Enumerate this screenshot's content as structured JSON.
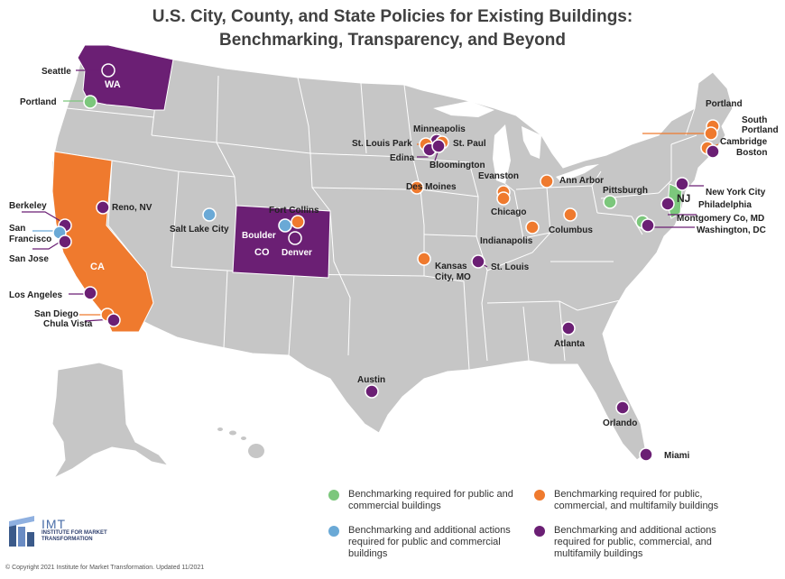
{
  "title": {
    "line1": "U.S. City, County, and State Policies for Existing Buildings:",
    "line2": "Benchmarking, Transparency, and Beyond"
  },
  "colors": {
    "land": "#c6c6c6",
    "border": "#ffffff",
    "green": "#7cc77c",
    "blue": "#6aa9d6",
    "orange": "#ef7a2e",
    "purple": "#6b1f74",
    "state_purple": "#6b1f74",
    "state_orange": "#ef7a2e"
  },
  "states": [
    {
      "abbr": "WA",
      "category": "purple"
    },
    {
      "abbr": "CA",
      "category": "orange"
    },
    {
      "abbr": "CO",
      "category": "purple"
    },
    {
      "abbr": "NJ",
      "category": "green"
    }
  ],
  "cities": [
    {
      "name": "Seattle",
      "category": "purple"
    },
    {
      "name": "Portland",
      "category": "green"
    },
    {
      "name": "Berkeley",
      "category": "purple"
    },
    {
      "name": "San Francisco",
      "category": "blue"
    },
    {
      "name": "San Jose",
      "category": "purple"
    },
    {
      "name": "Reno, NV",
      "category": "purple"
    },
    {
      "name": "Los Angeles",
      "category": "purple"
    },
    {
      "name": "San Diego",
      "category": "orange"
    },
    {
      "name": "Chula Vista",
      "category": "purple"
    },
    {
      "name": "Salt Lake City",
      "category": "blue"
    },
    {
      "name": "Fort Collins",
      "category": "orange"
    },
    {
      "name": "Boulder",
      "category": "blue"
    },
    {
      "name": "Denver",
      "category": "purple"
    },
    {
      "name": "Austin",
      "category": "purple"
    },
    {
      "name": "Minneapolis",
      "category": "purple"
    },
    {
      "name": "St. Louis Park",
      "category": "orange"
    },
    {
      "name": "St. Paul",
      "category": "orange"
    },
    {
      "name": "Edina",
      "category": "purple"
    },
    {
      "name": "Bloomington",
      "category": "purple"
    },
    {
      "name": "Des Moines",
      "category": "orange"
    },
    {
      "name": "Kansas City, MO",
      "category": "orange"
    },
    {
      "name": "St. Louis",
      "category": "purple"
    },
    {
      "name": "Evanston",
      "category": "orange"
    },
    {
      "name": "Chicago",
      "category": "orange"
    },
    {
      "name": "Indianapolis",
      "category": "orange"
    },
    {
      "name": "Ann Arbor",
      "category": "orange"
    },
    {
      "name": "Columbus",
      "category": "orange"
    },
    {
      "name": "Pittsburgh",
      "category": "green"
    },
    {
      "name": "Atlanta",
      "category": "purple"
    },
    {
      "name": "Orlando",
      "category": "purple"
    },
    {
      "name": "Miami",
      "category": "purple"
    },
    {
      "name": "Portland",
      "category": "orange"
    },
    {
      "name": "South Portland",
      "category": "orange"
    },
    {
      "name": "Cambridge",
      "category": "orange"
    },
    {
      "name": "Boston",
      "category": "purple"
    },
    {
      "name": "New York City",
      "category": "purple"
    },
    {
      "name": "Philadelphia",
      "category": "purple"
    },
    {
      "name": "Montgomery Co, MD",
      "category": "green"
    },
    {
      "name": "Washington, DC",
      "category": "purple"
    }
  ],
  "legend": [
    {
      "color": "green",
      "text": "Benchmarking required for public and commercial buildings"
    },
    {
      "color": "blue",
      "text": "Benchmarking and additional actions required for public and commercial buildings"
    },
    {
      "color": "orange",
      "text": "Benchmarking required for public, commercial, and multifamily buildings"
    },
    {
      "color": "purple",
      "text": "Benchmarking and additional actions required for public, commercial, and multifamily buildings"
    }
  ],
  "logo": {
    "name": "IMT",
    "subtitle": "INSTITUTE FOR MARKET TRANSFORMATION"
  },
  "copyright": "© Copyright 2021 Institute for Market Transformation. Updated 11/2021"
}
